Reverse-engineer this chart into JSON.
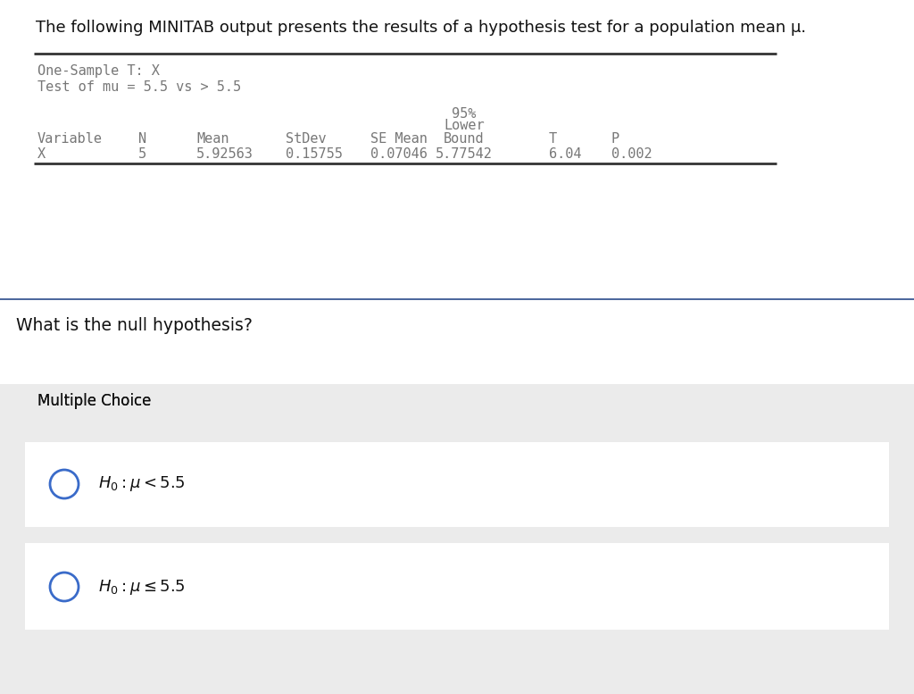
{
  "title": "The following MINITAB output presents the results of a hypothesis test for a population mean μ.",
  "title_fontsize": 13,
  "title_color": "#111111",
  "bg_color": "#ffffff",
  "section_bg": "#ebebeb",
  "option_bg": "#ffffff",
  "minitab_header1": "One-Sample T: X",
  "minitab_header2": "Test of mu = 5.5 vs > 5.5",
  "table_col1_header": "Variable",
  "table_col2_header": "N",
  "table_col3_header": "Mean",
  "table_col4_header": "StDev",
  "table_col5_header": "SE Mean",
  "table_col6_header_line1": "95%",
  "table_col6_header_line2": "Lower",
  "table_col6_header_line3": "Bound",
  "table_col7_header": "T",
  "table_col8_header": "P",
  "table_row_col1": "X",
  "table_row_col2": "5",
  "table_row_col3": "5.92563",
  "table_row_col4": "0.15755",
  "table_row_col5": "0.07046",
  "table_row_col6": "5.77542",
  "table_row_col7": "6.04",
  "table_row_col8": "0.002",
  "question": "What is the null hypothesis?",
  "multiple_choice_label": "Multiple Choice",
  "minitab_font": "monospace",
  "minitab_fontsize": 11,
  "minitab_color": "#777777",
  "line_color": "#333333",
  "separator_line_color": "#2a4a8a",
  "circle_color": "#3a6bc9",
  "option_text_color": "#111111",
  "question_fontsize": 13.5,
  "mc_fontsize": 12,
  "option_fontsize": 13
}
